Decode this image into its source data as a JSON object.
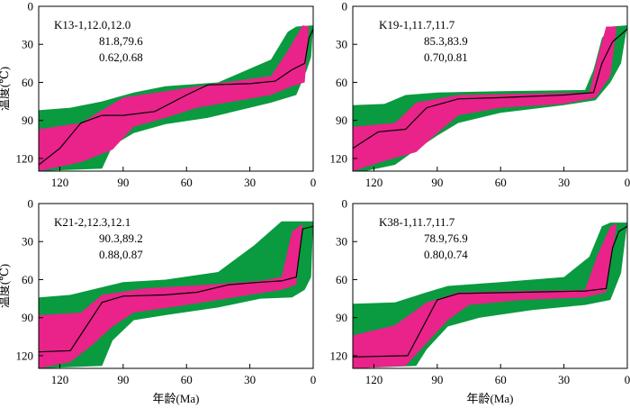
{
  "figure": {
    "xlabel": "年龄(Ma)",
    "ylabel": "温度(℃)"
  },
  "colors": {
    "good_fit": "#0a9a3f",
    "acceptable_fit": "#e9238a",
    "best_fit_line": "#000000",
    "frame": "#000000"
  },
  "chart_data": [
    {
      "type": "area",
      "annotation_lines": [
        "K13-1,12.0,12.0",
        "81.8,79.6",
        "0.62,0.68"
      ],
      "xlim": [
        130,
        0
      ],
      "ylim": [
        0,
        130
      ],
      "xticks": [
        120,
        90,
        60,
        30,
        0
      ],
      "yticks": [
        0,
        30,
        60,
        90,
        120
      ],
      "xlabel": "",
      "ylabel": "温度(℃)",
      "good_band": {
        "upper": [
          [
            130,
            82
          ],
          [
            115,
            80
          ],
          [
            100,
            75
          ],
          [
            85,
            68
          ],
          [
            70,
            63
          ],
          [
            45,
            60
          ],
          [
            20,
            42
          ],
          [
            12,
            20
          ],
          [
            8,
            16
          ],
          [
            0,
            15
          ]
        ],
        "lower": [
          [
            130,
            130
          ],
          [
            100,
            128
          ],
          [
            95,
            110
          ],
          [
            85,
            100
          ],
          [
            70,
            93
          ],
          [
            50,
            88
          ],
          [
            20,
            76
          ],
          [
            8,
            70
          ],
          [
            3,
            50
          ],
          [
            1,
            40
          ],
          [
            0,
            15
          ]
        ]
      },
      "acceptable_band": {
        "upper": [
          [
            130,
            97
          ],
          [
            110,
            92
          ],
          [
            90,
            72
          ],
          [
            70,
            67
          ],
          [
            50,
            62
          ],
          [
            20,
            55
          ],
          [
            12,
            35
          ],
          [
            5,
            15
          ],
          [
            2,
            16
          ]
        ],
        "lower": [
          [
            130,
            130
          ],
          [
            110,
            123
          ],
          [
            95,
            113
          ],
          [
            85,
            95
          ],
          [
            70,
            88
          ],
          [
            55,
            80
          ],
          [
            20,
            70
          ],
          [
            10,
            63
          ],
          [
            4,
            60
          ],
          [
            2,
            16
          ]
        ]
      },
      "best_fit": [
        [
          130,
          125
        ],
        [
          120,
          112
        ],
        [
          110,
          92
        ],
        [
          100,
          86
        ],
        [
          90,
          86
        ],
        [
          75,
          83
        ],
        [
          60,
          70
        ],
        [
          50,
          62
        ],
        [
          30,
          61
        ],
        [
          18,
          59
        ],
        [
          10,
          50
        ],
        [
          4,
          45
        ],
        [
          2,
          25
        ],
        [
          0,
          18
        ]
      ]
    },
    {
      "type": "area",
      "annotation_lines": [
        "K19-1,11.7,11.7",
        "85.3,83.9",
        "0.70,0.81"
      ],
      "xlim": [
        130,
        0
      ],
      "ylim": [
        0,
        130
      ],
      "xticks": [
        120,
        90,
        60,
        30,
        0
      ],
      "yticks": [
        0,
        30,
        60,
        90,
        120
      ],
      "xlabel": "",
      "ylabel": "",
      "good_band": {
        "upper": [
          [
            130,
            78
          ],
          [
            115,
            77
          ],
          [
            105,
            70
          ],
          [
            90,
            68
          ],
          [
            60,
            67
          ],
          [
            20,
            66
          ],
          [
            16,
            50
          ],
          [
            12,
            25
          ],
          [
            8,
            16
          ],
          [
            0,
            15
          ]
        ],
        "lower": [
          [
            130,
            132
          ],
          [
            110,
            125
          ],
          [
            100,
            113
          ],
          [
            90,
            102
          ],
          [
            80,
            92
          ],
          [
            60,
            84
          ],
          [
            30,
            78
          ],
          [
            15,
            74
          ],
          [
            8,
            60
          ],
          [
            3,
            45
          ],
          [
            0,
            15
          ]
        ]
      },
      "acceptable_band": {
        "upper": [
          [
            130,
            95
          ],
          [
            110,
            92
          ],
          [
            100,
            76
          ],
          [
            80,
            70
          ],
          [
            50,
            69
          ],
          [
            18,
            68
          ],
          [
            14,
            40
          ],
          [
            10,
            16
          ],
          [
            5,
            16
          ]
        ],
        "lower": [
          [
            130,
            130
          ],
          [
            115,
            122
          ],
          [
            100,
            115
          ],
          [
            90,
            100
          ],
          [
            80,
            86
          ],
          [
            60,
            80
          ],
          [
            30,
            77
          ],
          [
            15,
            72
          ],
          [
            8,
            55
          ],
          [
            5,
            16
          ]
        ]
      },
      "best_fit": [
        [
          130,
          112
        ],
        [
          118,
          99
        ],
        [
          105,
          97
        ],
        [
          95,
          80
        ],
        [
          80,
          73
        ],
        [
          60,
          72
        ],
        [
          30,
          70
        ],
        [
          16,
          68
        ],
        [
          12,
          45
        ],
        [
          7,
          28
        ],
        [
          0,
          18
        ]
      ]
    },
    {
      "type": "area",
      "annotation_lines": [
        "K21-2,12.3,12.1",
        "90.3,89.2",
        "0.88,0.87"
      ],
      "xlim": [
        130,
        0
      ],
      "ylim": [
        0,
        130
      ],
      "xticks": [
        120,
        90,
        60,
        30,
        0
      ],
      "yticks": [
        0,
        30,
        60,
        90,
        120
      ],
      "xlabel": "年龄(Ma)",
      "ylabel": "温度(℃)",
      "good_band": {
        "upper": [
          [
            130,
            74
          ],
          [
            115,
            72
          ],
          [
            100,
            66
          ],
          [
            90,
            62
          ],
          [
            70,
            60
          ],
          [
            45,
            54
          ],
          [
            28,
            33
          ],
          [
            15,
            14
          ],
          [
            0,
            14
          ]
        ],
        "lower": [
          [
            130,
            130
          ],
          [
            100,
            128
          ],
          [
            95,
            108
          ],
          [
            85,
            92
          ],
          [
            70,
            88
          ],
          [
            45,
            82
          ],
          [
            25,
            75
          ],
          [
            10,
            74
          ],
          [
            4,
            68
          ],
          [
            1,
            58
          ],
          [
            0,
            14
          ]
        ]
      },
      "acceptable_band": {
        "upper": [
          [
            130,
            88
          ],
          [
            110,
            86
          ],
          [
            100,
            72
          ],
          [
            80,
            67
          ],
          [
            50,
            64
          ],
          [
            25,
            61
          ],
          [
            15,
            58
          ],
          [
            10,
            22
          ],
          [
            5,
            16
          ]
        ],
        "lower": [
          [
            130,
            130
          ],
          [
            115,
            125
          ],
          [
            105,
            112
          ],
          [
            95,
            97
          ],
          [
            85,
            86
          ],
          [
            60,
            80
          ],
          [
            30,
            72
          ],
          [
            15,
            68
          ],
          [
            8,
            64
          ],
          [
            5,
            16
          ]
        ]
      },
      "best_fit": [
        [
          130,
          117
        ],
        [
          115,
          116
        ],
        [
          100,
          78
        ],
        [
          90,
          73
        ],
        [
          70,
          72
        ],
        [
          55,
          70
        ],
        [
          40,
          64
        ],
        [
          25,
          62
        ],
        [
          15,
          61
        ],
        [
          8,
          58
        ],
        [
          5,
          20
        ],
        [
          0,
          18
        ]
      ]
    },
    {
      "type": "area",
      "annotation_lines": [
        "K38-1,11.7,11.7",
        "78.9,76.9",
        "0.80,0.74"
      ],
      "xlim": [
        130,
        0
      ],
      "ylim": [
        0,
        130
      ],
      "xticks": [
        120,
        90,
        60,
        30,
        0
      ],
      "yticks": [
        0,
        30,
        60,
        90,
        120
      ],
      "xlabel": "年龄(Ma)",
      "ylabel": "",
      "good_band": {
        "upper": [
          [
            130,
            79
          ],
          [
            110,
            78
          ],
          [
            95,
            70
          ],
          [
            85,
            65
          ],
          [
            60,
            62
          ],
          [
            30,
            58
          ],
          [
            18,
            42
          ],
          [
            12,
            18
          ],
          [
            8,
            15
          ],
          [
            0,
            15
          ]
        ],
        "lower": [
          [
            130,
            130
          ],
          [
            100,
            128
          ],
          [
            95,
            115
          ],
          [
            85,
            97
          ],
          [
            70,
            90
          ],
          [
            45,
            84
          ],
          [
            20,
            80
          ],
          [
            8,
            76
          ],
          [
            3,
            55
          ],
          [
            0,
            15
          ]
        ]
      },
      "acceptable_band": {
        "upper": [
          [
            130,
            104
          ],
          [
            110,
            96
          ],
          [
            95,
            78
          ],
          [
            80,
            70
          ],
          [
            50,
            69
          ],
          [
            20,
            68
          ],
          [
            14,
            40
          ],
          [
            8,
            18
          ],
          [
            5,
            16
          ]
        ],
        "lower": [
          [
            130,
            130
          ],
          [
            105,
            128
          ],
          [
            95,
            110
          ],
          [
            85,
            92
          ],
          [
            75,
            80
          ],
          [
            50,
            76
          ],
          [
            20,
            74
          ],
          [
            10,
            70
          ],
          [
            5,
            16
          ]
        ]
      },
      "best_fit": [
        [
          130,
          121
        ],
        [
          104,
          120
        ],
        [
          90,
          76
        ],
        [
          80,
          71
        ],
        [
          50,
          70
        ],
        [
          20,
          69
        ],
        [
          10,
          67
        ],
        [
          7,
          35
        ],
        [
          4,
          22
        ],
        [
          0,
          18
        ]
      ]
    }
  ]
}
